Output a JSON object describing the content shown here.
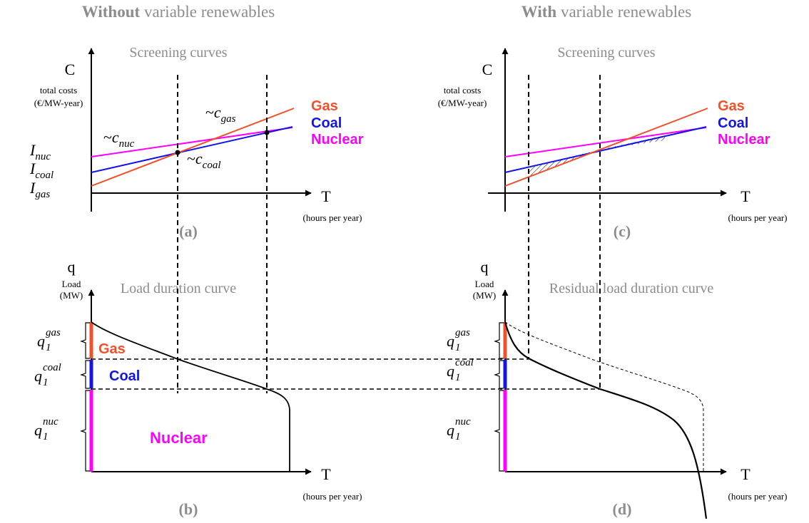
{
  "headers": {
    "left_bold": "Without",
    "left_rest": " variable renewables",
    "right_bold": "With",
    "right_rest": " variable renewables"
  },
  "panels": {
    "a": {
      "label": "(a)",
      "title": "Screening curves",
      "y_axis": "C",
      "y_desc1": "total costs",
      "y_desc2": "(€/MW-year)",
      "x_axis": "T",
      "x_desc": "(hours per year)",
      "intercepts": [
        {
          "base": "I",
          "sub": "nuc"
        },
        {
          "base": "I",
          "sub": "coal"
        },
        {
          "base": "I",
          "sub": "gas"
        }
      ],
      "slopes": [
        {
          "prefix": "~",
          "base": "c",
          "sub": "nuc"
        },
        {
          "prefix": "~",
          "base": "c",
          "sub": "gas"
        },
        {
          "prefix": "~",
          "base": "c",
          "sub": "coal"
        }
      ]
    },
    "b": {
      "label": "(b)",
      "title": "Load duration curve",
      "y_axis": "q",
      "y_desc1": "Load",
      "y_desc2": "(MW)",
      "x_axis": "T",
      "x_desc": "(hours per year)",
      "band_labels": {
        "gas": "Gas",
        "coal": "Coal",
        "nuclear": "Nuclear"
      },
      "capacity_labels": [
        {
          "base": "q",
          "sub": "1",
          "sup": "gas"
        },
        {
          "base": "q",
          "sub": "1",
          "sup": "coal"
        },
        {
          "base": "q",
          "sub": "1",
          "sup": "nuc"
        }
      ]
    },
    "c": {
      "label": "(c)",
      "title": "Screening curves",
      "y_axis": "C",
      "y_desc1": "total costs",
      "y_desc2": "(€/MW-year)",
      "x_axis": "T",
      "x_desc": "(hours per year)"
    },
    "d": {
      "label": "(d)",
      "title": "Residual load duration curve",
      "y_axis": "q",
      "y_desc1": "Load",
      "y_desc2": "(MW)",
      "x_axis": "T",
      "x_desc": "(hours per year)",
      "capacity_labels": [
        {
          "base": "q",
          "sub": "1",
          "sup": "gas"
        },
        {
          "base": "q",
          "sub": "1",
          "sup": "coal"
        },
        {
          "base": "q",
          "sub": "1",
          "sup": "nuc"
        }
      ]
    }
  },
  "legend": {
    "gas": "Gas",
    "coal": "Coal",
    "nuclear": "Nuclear"
  },
  "colors": {
    "gas": "#f0502a",
    "coal": "#1414e6",
    "nuclear": "#ff00ff",
    "title_grey": "#8c8c8c"
  }
}
